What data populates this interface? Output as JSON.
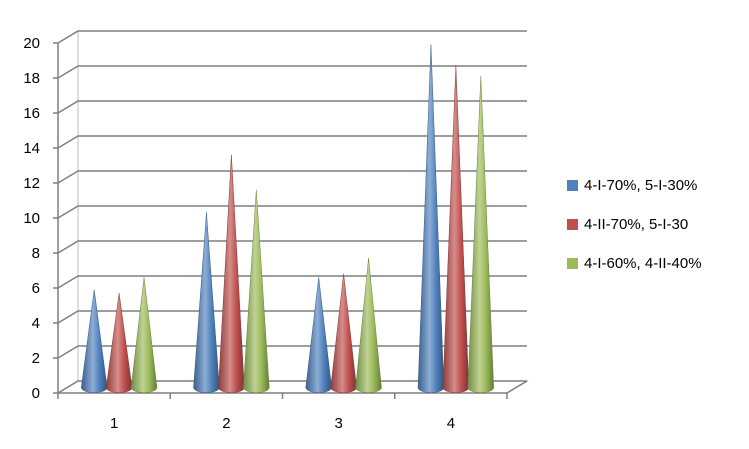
{
  "chart_data": {
    "type": "bar",
    "bar_shape": "cone-3d",
    "categories": [
      "1",
      "2",
      "3",
      "4"
    ],
    "series": [
      {
        "name": "4-I-70%, 5-I-30%",
        "color": "#4f81bd",
        "values": [
          5.6,
          10.0,
          6.3,
          19.6
        ]
      },
      {
        "name": "4-II-70%, 5-I-30",
        "color": "#c0504d",
        "values": [
          5.4,
          13.3,
          6.5,
          18.4
        ]
      },
      {
        "name": "4-I-60%, 4-II-40%",
        "color": "#9bbb59",
        "values": [
          6.3,
          11.3,
          7.4,
          17.8
        ]
      }
    ],
    "y_ticks": [
      "0",
      "2",
      "4",
      "6",
      "8",
      "10",
      "12",
      "14",
      "16",
      "18",
      "20"
    ],
    "ylim": [
      0,
      20
    ],
    "title": "",
    "xlabel": "",
    "ylabel": "",
    "grid": true,
    "legend_position": "right"
  }
}
